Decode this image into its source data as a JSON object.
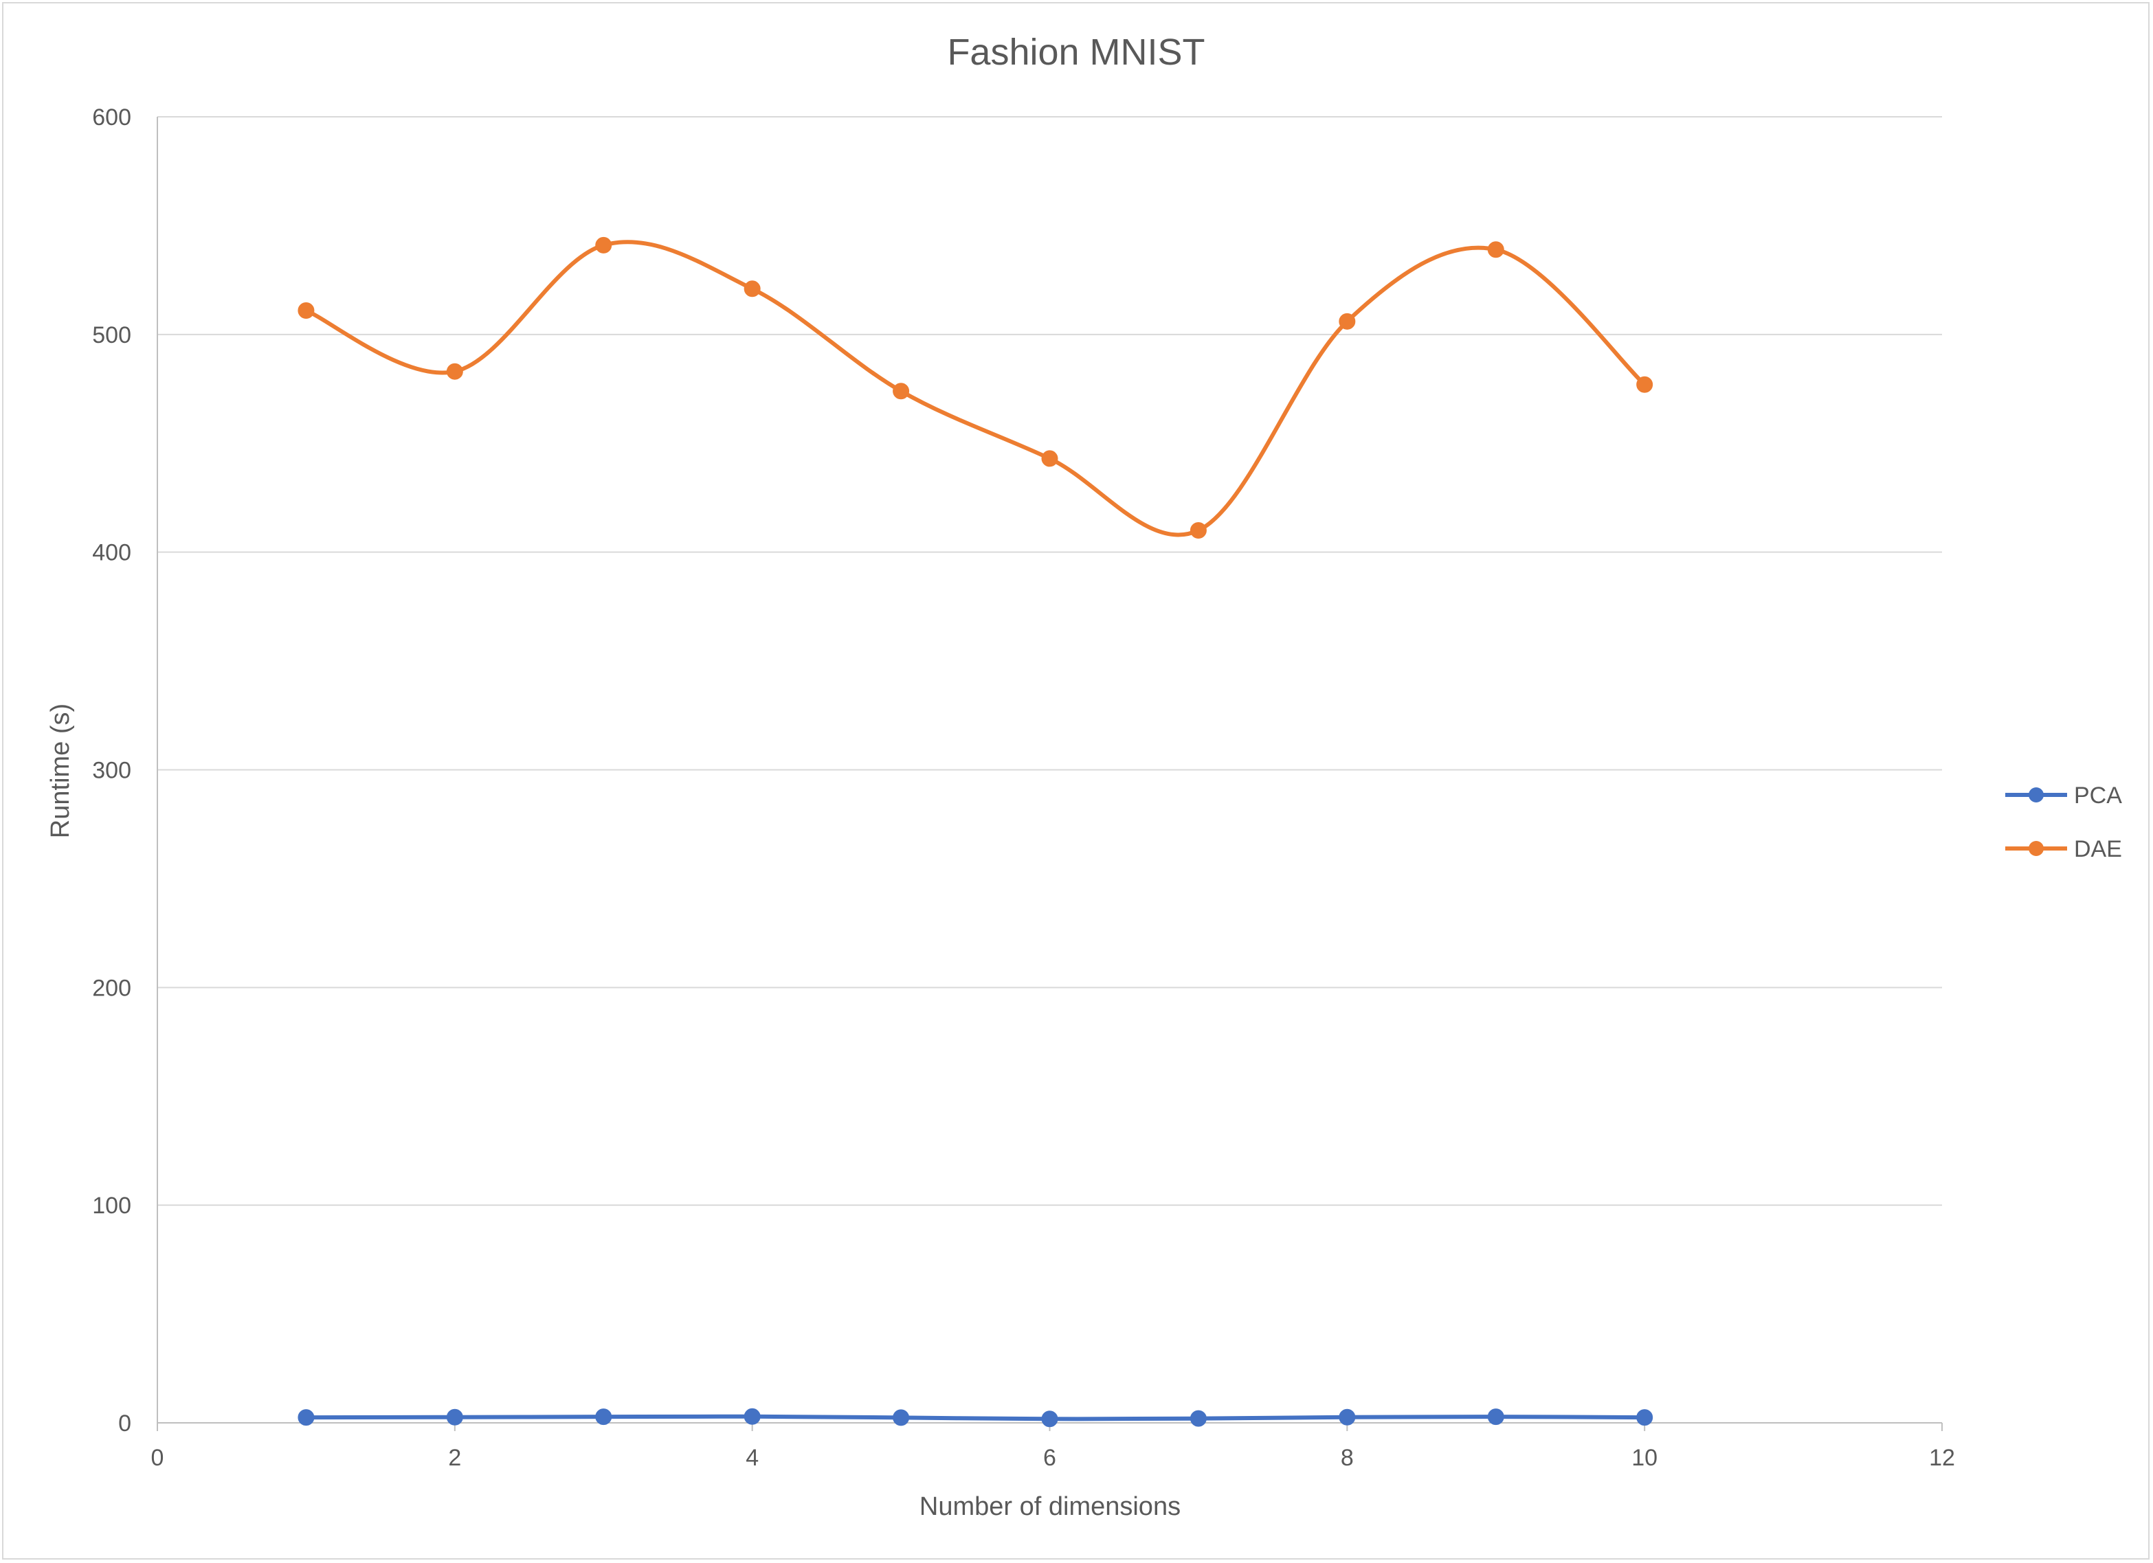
{
  "chart_data": {
    "type": "line",
    "title": "Fashion MNIST",
    "xlabel": "Number of dimensions",
    "ylabel": "Runtime (s)",
    "xlim": [
      0,
      12
    ],
    "ylim": [
      0,
      600
    ],
    "xticks": [
      0,
      2,
      4,
      6,
      8,
      10,
      12
    ],
    "yticks": [
      0,
      100,
      200,
      300,
      400,
      500,
      600
    ],
    "grid": "horizontal",
    "legend_position": "right",
    "smooth": true,
    "series": [
      {
        "name": "PCA",
        "color": "#4472C4",
        "x": [
          1,
          2,
          3,
          4,
          5,
          6,
          7,
          8,
          9,
          10
        ],
        "y": [
          2.5,
          2.6,
          2.8,
          2.9,
          2.4,
          1.8,
          2.0,
          2.6,
          2.8,
          2.5
        ]
      },
      {
        "name": "DAE",
        "color": "#ED7D31",
        "x": [
          1,
          2,
          3,
          4,
          5,
          6,
          7,
          8,
          9,
          10
        ],
        "y": [
          511,
          483,
          541,
          521,
          474,
          443,
          410,
          506,
          539,
          477
        ]
      }
    ]
  }
}
